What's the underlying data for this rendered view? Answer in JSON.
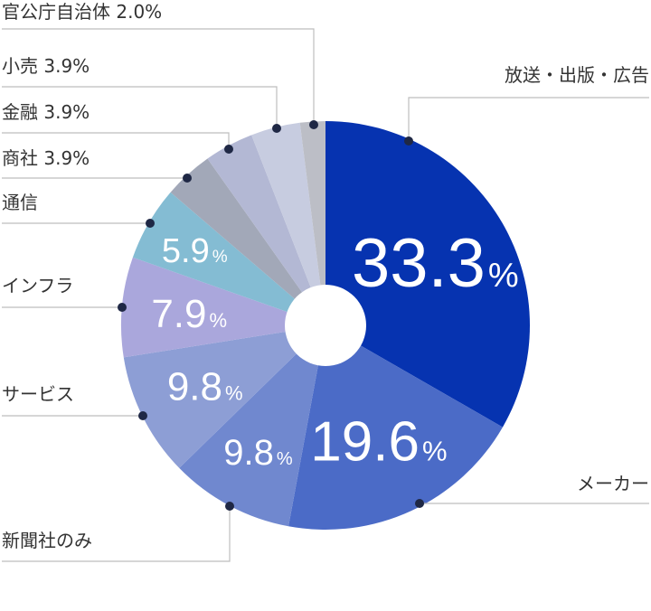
{
  "chart_data": {
    "type": "pie",
    "donut": true,
    "start_angle_deg": 0,
    "direction": "clockwise",
    "slices": [
      {
        "label": "放送・出版・広告",
        "value": 33.3,
        "legend_text": "放送・出版・広告",
        "value_text": "33.3",
        "unit": "%",
        "color": "#0633b0"
      },
      {
        "label": "メーカー",
        "value": 19.6,
        "legend_text": "メーカー",
        "value_text": "19.6",
        "unit": "%",
        "color": "#4b6bc7"
      },
      {
        "label": "新聞社のみ",
        "value": 9.8,
        "legend_text": "新聞社のみ",
        "value_text": "9.8",
        "unit": "%",
        "color": "#7088cf"
      },
      {
        "label": "サービス",
        "value": 9.8,
        "legend_text": "サービス",
        "value_text": "9.8",
        "unit": "%",
        "color": "#8d9ed5"
      },
      {
        "label": "インフラ",
        "value": 7.9,
        "legend_text": "インフラ",
        "value_text": "7.9",
        "unit": "%",
        "color": "#aaa7dc"
      },
      {
        "label": "通信",
        "value": 5.9,
        "legend_text": "通信",
        "value_text": "5.9",
        "unit": "%",
        "color": "#84bcd3"
      },
      {
        "label": "商社",
        "value": 3.9,
        "legend_text": "商社 3.9%",
        "value_text": "",
        "unit": "",
        "color": "#a2a8b8"
      },
      {
        "label": "金融",
        "value": 3.9,
        "legend_text": "金融 3.9%",
        "value_text": "",
        "unit": "",
        "color": "#b3b8d4"
      },
      {
        "label": "小売",
        "value": 3.9,
        "legend_text": "小売 3.9%",
        "value_text": "",
        "unit": "",
        "color": "#c7cce0"
      },
      {
        "label": "官公庁自治体",
        "value": 2.0,
        "legend_text": "官公庁自治体 2.0%",
        "value_text": "",
        "unit": "",
        "color": "#bcbec6"
      }
    ]
  }
}
